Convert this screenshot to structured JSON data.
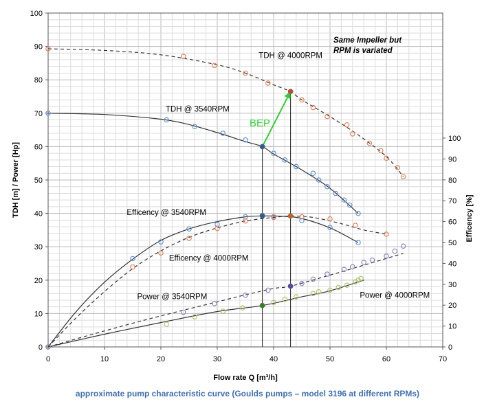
{
  "caption": "approximate pump characteristic curve (Goulds pumps – model 3196 at different RPMs)",
  "colors": {
    "blue_markers": "#5b8fd6",
    "orange_markers": "#e07b52",
    "olive_markers": "#a7c267",
    "purple_markers": "#8a7fc0",
    "bep_arrow": "#33cc33",
    "dark_marker": "#3a5a8a",
    "green_marker": "#3b7d2a",
    "curve": "#333333",
    "grid": "#c8c8c8"
  },
  "chart_data": {
    "type": "line",
    "title": "",
    "xlabel": "Flow rate Q [m³/h]",
    "ylabel": "TDH [m] / Power [Hp]",
    "y2label": "Efficency [%]",
    "xlim": [
      0,
      70
    ],
    "ylim": [
      0,
      100
    ],
    "y2lim": [
      0,
      100
    ],
    "x_ticks": [
      "0",
      "10",
      "20",
      "30",
      "40",
      "50",
      "60",
      "70"
    ],
    "y_ticks": [
      "0",
      "10",
      "20",
      "30",
      "40",
      "50",
      "60",
      "70",
      "80",
      "90",
      "100"
    ],
    "y2_ticks": [
      "0",
      "10",
      "20",
      "30",
      "40",
      "50",
      "60",
      "70",
      "80",
      "90",
      "100"
    ],
    "grid": true,
    "annotation": "Same Impeller but\nRPM is variated",
    "bep_label": "BEP",
    "series": [
      {
        "name": "TDH @ 3540RPM",
        "axis": "left",
        "dash": false,
        "marker_color": "#5b8fd6",
        "curve": [
          [
            0,
            70
          ],
          [
            10,
            69.6
          ],
          [
            20,
            68.2
          ],
          [
            25,
            66.6
          ],
          [
            30,
            64.2
          ],
          [
            35,
            61.5
          ],
          [
            38,
            60
          ],
          [
            40,
            57.8
          ],
          [
            45,
            53
          ],
          [
            50,
            47.5
          ],
          [
            55,
            40
          ]
        ],
        "points": [
          [
            0,
            70
          ],
          [
            21,
            68
          ],
          [
            26,
            66
          ],
          [
            31,
            64
          ],
          [
            35,
            62
          ],
          [
            38,
            60
          ],
          [
            40,
            58
          ],
          [
            42,
            56
          ],
          [
            44,
            54
          ],
          [
            47,
            52
          ],
          [
            48,
            50
          ],
          [
            49.5,
            48
          ],
          [
            51,
            46
          ],
          [
            52.5,
            44
          ],
          [
            53.5,
            42.5
          ],
          [
            55,
            40
          ]
        ]
      },
      {
        "name": "TDH @ 4000RPM",
        "axis": "left",
        "dash": true,
        "marker_color": "#e07b52",
        "curve": [
          [
            0,
            89.3
          ],
          [
            10,
            88.8
          ],
          [
            20,
            87.5
          ],
          [
            30,
            84.5
          ],
          [
            35,
            82
          ],
          [
            40,
            78.5
          ],
          [
            43,
            76.5
          ],
          [
            45,
            74
          ],
          [
            50,
            69
          ],
          [
            55,
            63.5
          ],
          [
            60,
            57
          ],
          [
            63,
            51
          ]
        ],
        "points": [
          [
            0,
            89.3
          ],
          [
            24,
            87
          ],
          [
            29.5,
            84.3
          ],
          [
            35,
            82
          ],
          [
            39,
            79
          ],
          [
            43,
            76.5
          ],
          [
            45,
            74
          ],
          [
            47,
            71.7
          ],
          [
            49.5,
            69
          ],
          [
            53,
            66.5
          ],
          [
            54,
            63.8
          ],
          [
            57,
            61
          ],
          [
            59,
            58.8
          ],
          [
            60,
            56.5
          ],
          [
            62,
            53.7
          ],
          [
            63,
            51
          ]
        ]
      },
      {
        "name": "Efficency @ 3540RPM",
        "axis": "right",
        "dash": false,
        "marker_color": "#5b8fd6",
        "curve": [
          [
            0,
            0
          ],
          [
            5,
            17
          ],
          [
            10,
            31
          ],
          [
            15,
            42
          ],
          [
            20,
            51
          ],
          [
            25,
            56.5
          ],
          [
            30,
            60
          ],
          [
            35,
            62.3
          ],
          [
            38,
            62.7
          ],
          [
            42,
            62.5
          ],
          [
            45,
            61.5
          ],
          [
            50,
            57
          ],
          [
            55,
            50
          ]
        ],
        "points": [
          [
            0,
            0
          ],
          [
            15,
            42.3
          ],
          [
            20,
            50.3
          ],
          [
            25,
            56.5
          ],
          [
            30,
            58.7
          ],
          [
            35,
            62.3
          ],
          [
            38,
            63
          ],
          [
            40,
            62.3
          ],
          [
            45,
            60.5
          ],
          [
            50,
            57.2
          ],
          [
            55,
            50
          ]
        ]
      },
      {
        "name": "Efficency @ 4000RPM",
        "axis": "right",
        "dash": true,
        "marker_color": "#e07b52",
        "curve": [
          [
            0,
            0
          ],
          [
            5,
            14
          ],
          [
            10,
            26.5
          ],
          [
            15,
            37.5
          ],
          [
            20,
            46
          ],
          [
            25,
            52.5
          ],
          [
            30,
            57
          ],
          [
            35,
            60.3
          ],
          [
            40,
            62
          ],
          [
            43,
            62.7
          ],
          [
            47,
            62
          ],
          [
            52,
            59
          ],
          [
            56,
            56
          ],
          [
            60,
            54
          ]
        ],
        "points": [
          [
            0,
            0
          ],
          [
            15,
            38.3
          ],
          [
            20,
            45
          ],
          [
            25,
            52
          ],
          [
            30,
            56.7
          ],
          [
            35,
            60.3
          ],
          [
            40,
            62
          ],
          [
            43,
            62.7
          ],
          [
            45,
            62.3
          ],
          [
            50,
            61.3
          ],
          [
            54.5,
            58.2
          ],
          [
            60,
            54
          ]
        ]
      },
      {
        "name": "Power @ 3540RPM",
        "axis": "left",
        "dash": false,
        "marker_color": "#a7c267",
        "curve": [
          [
            0,
            0
          ],
          [
            10,
            3.8
          ],
          [
            20,
            7.3
          ],
          [
            30,
            10.6
          ],
          [
            38,
            12.4
          ],
          [
            45,
            15
          ],
          [
            50,
            16.8
          ],
          [
            56,
            20
          ]
        ],
        "points": [
          [
            0,
            0
          ],
          [
            21,
            6.8
          ],
          [
            26,
            9
          ],
          [
            31,
            10.7
          ],
          [
            34.5,
            11.7
          ],
          [
            38,
            12.4
          ],
          [
            40,
            13.3
          ],
          [
            42,
            14.3
          ],
          [
            44,
            15
          ],
          [
            47,
            16
          ],
          [
            48,
            16.5
          ],
          [
            50,
            17
          ],
          [
            51.5,
            17.8
          ],
          [
            53,
            18.5
          ],
          [
            54.5,
            19.5
          ],
          [
            55,
            20
          ],
          [
            55.5,
            20.5
          ]
        ]
      },
      {
        "name": "Power @ 4000RPM",
        "axis": "left",
        "dash": true,
        "marker_color": "#8a7fc0",
        "curve": [
          [
            0,
            0
          ],
          [
            10,
            4.8
          ],
          [
            20,
            9.3
          ],
          [
            30,
            13.5
          ],
          [
            35,
            15.6
          ],
          [
            40,
            17.5
          ],
          [
            43,
            18.2
          ],
          [
            50,
            21.5
          ],
          [
            55,
            24
          ],
          [
            63,
            28
          ]
        ],
        "points": [
          [
            0,
            0
          ],
          [
            24,
            10.4
          ],
          [
            29.5,
            13
          ],
          [
            35,
            15.5
          ],
          [
            39,
            17
          ],
          [
            43,
            18.2
          ],
          [
            45,
            19
          ],
          [
            47,
            20.3
          ],
          [
            49.5,
            21.8
          ],
          [
            52.5,
            23.2
          ],
          [
            54,
            24
          ],
          [
            56,
            25.3
          ],
          [
            57.5,
            26
          ],
          [
            60,
            27.2
          ],
          [
            61.5,
            28.7
          ],
          [
            63,
            30.2
          ]
        ]
      }
    ],
    "bep": {
      "from": [
        38,
        60
      ],
      "to": [
        43,
        76.5
      ]
    },
    "highlight_points": [
      {
        "x": 38,
        "y": 60,
        "axis": "left",
        "color": "#3a5a8a"
      },
      {
        "x": 43,
        "y": 76.5,
        "axis": "left",
        "color": "#b0503a"
      },
      {
        "x": 38,
        "y": 62.7,
        "axis": "right",
        "color": "#3a5a8a"
      },
      {
        "x": 43,
        "y": 62.7,
        "axis": "right",
        "color": "#c0602a"
      },
      {
        "x": 38,
        "y": 12.4,
        "axis": "left",
        "color": "#3b7d2a"
      },
      {
        "x": 43,
        "y": 18.2,
        "axis": "left",
        "color": "#5a4a9a"
      }
    ],
    "bep_verticals": [
      38,
      43
    ],
    "series_labels": [
      {
        "text": "TDH @ 4000RPM",
        "x": 43,
        "y": 86.5,
        "axis": "left"
      },
      {
        "text": "TDH @ 3540RPM",
        "x": 26.5,
        "y": 70.5,
        "axis": "left"
      },
      {
        "text": "Efficency @ 3540RPM",
        "x": 21,
        "y": 39.5,
        "axis": "left"
      },
      {
        "text": "Efficency @ 4000RPM",
        "x": 28.5,
        "y": 25.8,
        "axis": "left"
      },
      {
        "text": "Power @ 3540RPM",
        "x": 22,
        "y": 14.3,
        "axis": "left"
      },
      {
        "text": "Power @ 4000RPM",
        "x": 61.5,
        "y": 14.7,
        "axis": "left"
      }
    ]
  }
}
